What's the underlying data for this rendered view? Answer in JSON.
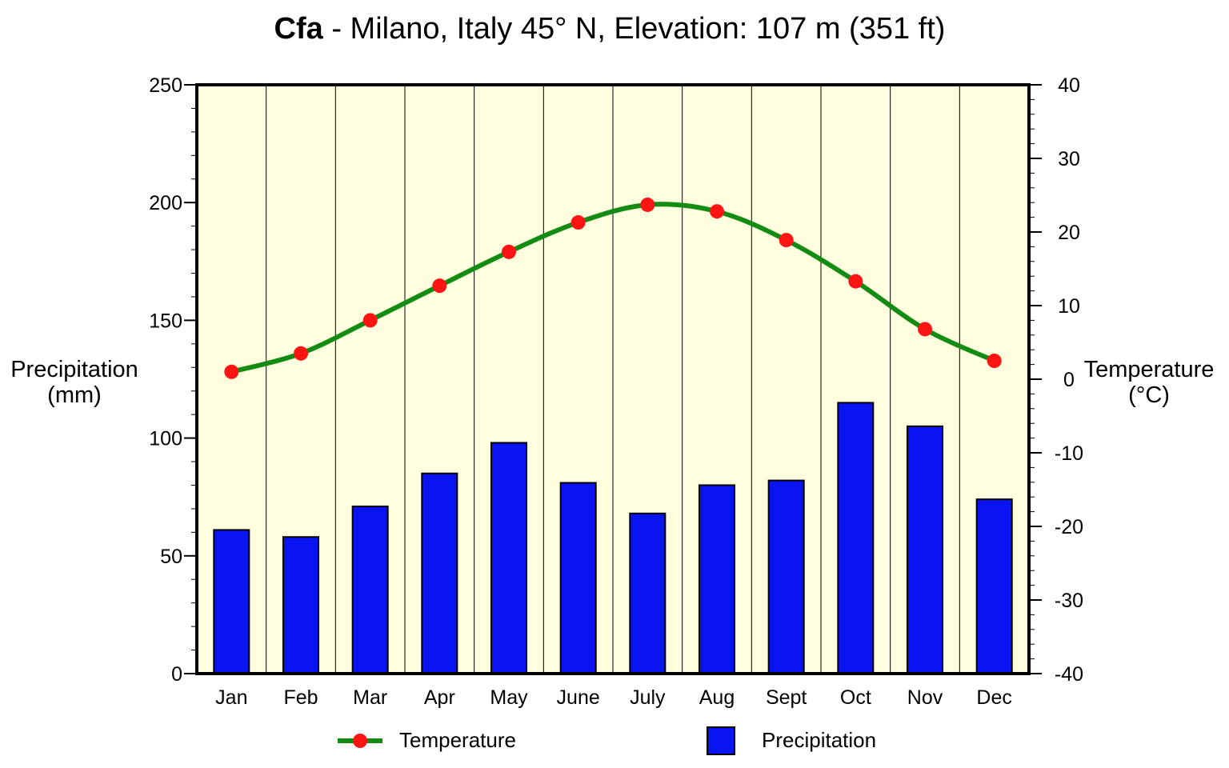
{
  "chart_data": {
    "type": "bar",
    "title": {
      "climate_code": "Cfa",
      "rest": " - Milano, Italy 45° N, Elevation: 107 m (351 ft)"
    },
    "categories": [
      "Jan",
      "Feb",
      "Mar",
      "Apr",
      "May",
      "June",
      "July",
      "Aug",
      "Sept",
      "Oct",
      "Nov",
      "Dec"
    ],
    "series": [
      {
        "name": "Precipitation",
        "type": "bar",
        "axis": "left",
        "color": "#0a14f0",
        "values": [
          61,
          58,
          71,
          85,
          98,
          81,
          68,
          80,
          82,
          115,
          105,
          74
        ]
      },
      {
        "name": "Temperature",
        "type": "line",
        "axis": "right",
        "line_color": "#148c14",
        "marker_color": "#ff1414",
        "values": [
          1.0,
          3.5,
          8.0,
          12.7,
          17.3,
          21.3,
          23.7,
          22.8,
          18.9,
          13.3,
          6.8,
          2.5
        ]
      }
    ],
    "left_axis": {
      "label_line1": "Precipitation",
      "label_line2": "(mm)",
      "ylim": [
        0,
        250
      ],
      "ticks": [
        0,
        50,
        100,
        150,
        200,
        250
      ],
      "minor_step": 10
    },
    "right_axis": {
      "label_line1": "Temperature",
      "label_line2": "(°C)",
      "ylim": [
        -40,
        40
      ],
      "ticks": [
        -40,
        -30,
        -20,
        -10,
        0,
        10,
        20,
        30,
        40
      ],
      "minor_step": 2
    },
    "legend": {
      "position": "bottom",
      "temperature_label": "Temperature",
      "precipitation_label": "Precipitation"
    },
    "colors": {
      "plot_background": "#ffffe0",
      "bar_fill": "#0a14f0",
      "line": "#148c14",
      "marker": "#ff1414"
    }
  }
}
